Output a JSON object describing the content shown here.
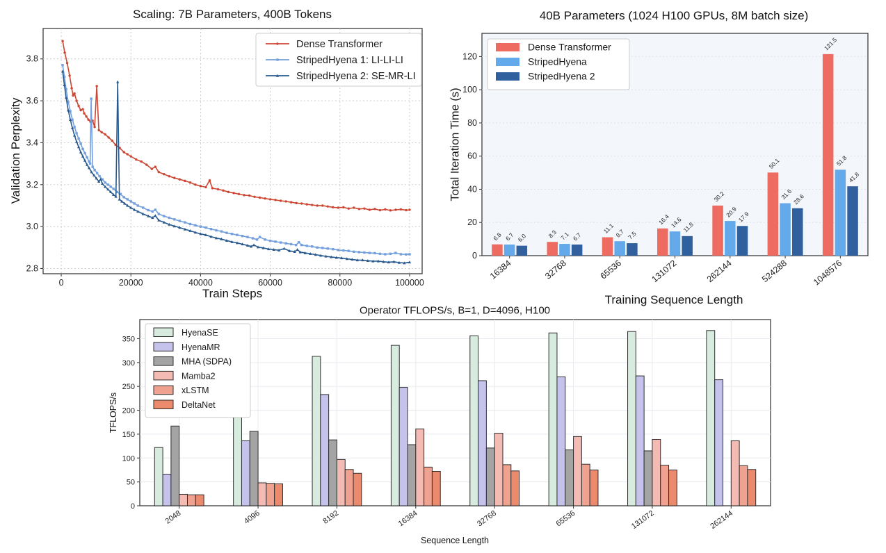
{
  "chart_data": [
    {
      "type": "line",
      "title": "Scaling: 7B Parameters, 400B Tokens",
      "xlabel": "Train Steps",
      "ylabel": "Validation Perplexity",
      "xlim": [
        -5200,
        103600
      ],
      "ylim": [
        2.775,
        3.945
      ],
      "xticks": [
        0,
        20000,
        40000,
        60000,
        80000,
        100000
      ],
      "yticks": [
        2.8,
        3.0,
        3.2,
        3.4,
        3.6,
        3.8
      ],
      "grid": "dashed",
      "legend_position": "upper right",
      "series": [
        {
          "name": "Dense Transformer",
          "color": "#cc4733",
          "marker": "circle",
          "x": [
            400,
            1000,
            1700,
            2400,
            3000,
            3400,
            3800,
            4400,
            5000,
            5600,
            6200,
            6600,
            7200,
            7800,
            8400,
            9000,
            9600,
            10200,
            10800,
            11600,
            12600,
            13600,
            14600,
            15600,
            16800,
            18000,
            19000,
            20000,
            21500,
            23000,
            24500,
            26000,
            27000,
            28000,
            29500,
            31000,
            32500,
            34000,
            35500,
            37000,
            38500,
            40000,
            41500,
            42600,
            43400,
            45000,
            46500,
            48000,
            49500,
            51000,
            52500,
            54000,
            55500,
            57000,
            58500,
            60000,
            61500,
            63000,
            64500,
            66000,
            67500,
            69000,
            70500,
            72000,
            73500,
            75000,
            76500,
            78000,
            79500,
            81000,
            82500,
            84000,
            85500,
            87000,
            88500,
            90000,
            91500,
            93000,
            94500,
            96000,
            97500,
            99000,
            100000
          ],
          "y": [
            3.885,
            3.83,
            3.78,
            3.72,
            3.66,
            3.625,
            3.635,
            3.6,
            3.575,
            3.555,
            3.56,
            3.54,
            3.525,
            3.51,
            3.5,
            3.505,
            3.475,
            3.67,
            3.46,
            3.45,
            3.44,
            3.425,
            3.41,
            3.39,
            3.375,
            3.355,
            3.345,
            3.335,
            3.32,
            3.31,
            3.295,
            3.275,
            3.285,
            3.26,
            3.25,
            3.24,
            3.232,
            3.225,
            3.218,
            3.21,
            3.2,
            3.193,
            3.188,
            3.22,
            3.183,
            3.178,
            3.172,
            3.165,
            3.16,
            3.155,
            3.15,
            3.148,
            3.142,
            3.138,
            3.134,
            3.13,
            3.127,
            3.123,
            3.12,
            3.116,
            3.112,
            3.11,
            3.106,
            3.103,
            3.1,
            3.1,
            3.096,
            3.092,
            3.09,
            3.092,
            3.086,
            3.09,
            3.084,
            3.086,
            3.08,
            3.084,
            3.078,
            3.082,
            3.077,
            3.08,
            3.082,
            3.078,
            3.08
          ]
        },
        {
          "name": "StripedHyena 1: LI-LI-LI",
          "color": "#739fdc",
          "marker": "square",
          "x": [
            400,
            900,
            1400,
            2000,
            2600,
            3200,
            3800,
            4400,
            5000,
            5600,
            6200,
            6800,
            7400,
            8000,
            8300,
            8600,
            9000,
            9600,
            10300,
            11000,
            11800,
            12600,
            13400,
            14200,
            15000,
            16000,
            17000,
            18000,
            19000,
            20000,
            21000,
            22000,
            23500,
            25000,
            26200,
            27000,
            28000,
            29500,
            31000,
            32500,
            34000,
            35500,
            37000,
            38500,
            40000,
            41500,
            43000,
            44500,
            46000,
            47500,
            49000,
            50500,
            52000,
            53500,
            55000,
            56200,
            57000,
            58500,
            60000,
            61500,
            63000,
            64500,
            66000,
            67400,
            68200,
            69000,
            70500,
            72000,
            73500,
            75000,
            76500,
            78000,
            79500,
            81000,
            82500,
            84000,
            85500,
            87000,
            88500,
            90000,
            91500,
            93000,
            94500,
            96000,
            97500,
            99000,
            100000
          ],
          "y": [
            3.77,
            3.715,
            3.655,
            3.595,
            3.55,
            3.51,
            3.475,
            3.445,
            3.42,
            3.395,
            3.37,
            3.35,
            3.33,
            3.31,
            3.3,
            3.61,
            3.285,
            3.27,
            3.255,
            3.24,
            3.225,
            3.21,
            3.2,
            3.19,
            3.18,
            3.165,
            3.155,
            3.14,
            3.13,
            3.12,
            3.11,
            3.1,
            3.09,
            3.078,
            3.072,
            3.08,
            3.06,
            3.05,
            3.042,
            3.034,
            3.027,
            3.02,
            3.012,
            3.006,
            3.0,
            2.995,
            2.988,
            2.982,
            2.977,
            2.97,
            2.965,
            2.96,
            2.955,
            2.95,
            2.944,
            2.938,
            2.95,
            2.938,
            2.932,
            2.928,
            2.924,
            2.92,
            2.916,
            2.912,
            2.925,
            2.912,
            2.908,
            2.905,
            2.9,
            2.898,
            2.895,
            2.892,
            2.888,
            2.886,
            2.884,
            2.88,
            2.878,
            2.876,
            2.874,
            2.873,
            2.87,
            2.868,
            2.87,
            2.874,
            2.868,
            2.867,
            2.868
          ]
        },
        {
          "name": "StripedHyena 2: SE-MR-LI",
          "color": "#28598e",
          "marker": "triangle",
          "x": [
            400,
            900,
            1400,
            2000,
            2600,
            3200,
            3800,
            4400,
            5000,
            5600,
            6200,
            6800,
            7400,
            8000,
            8700,
            9400,
            10100,
            10800,
            11300,
            11800,
            12600,
            13400,
            14200,
            15000,
            15700,
            16200,
            16700,
            17400,
            18200,
            19000,
            20000,
            21000,
            22000,
            23500,
            25000,
            26200,
            27000,
            28000,
            29500,
            31000,
            32500,
            34000,
            35500,
            37000,
            38500,
            40000,
            41500,
            43000,
            44500,
            46000,
            47500,
            49000,
            50500,
            52000,
            53500,
            54500,
            55300,
            56500,
            58000,
            59500,
            61000,
            62500,
            64000,
            65500,
            67000,
            67800,
            68600,
            70000,
            71500,
            73000,
            74500,
            76000,
            77500,
            79000,
            80500,
            82000,
            83500,
            85000,
            86500,
            88000,
            89500,
            91000,
            92500,
            94000,
            95500,
            97000,
            98500,
            100000
          ],
          "y": [
            3.74,
            3.675,
            3.615,
            3.555,
            3.51,
            3.47,
            3.435,
            3.405,
            3.38,
            3.355,
            3.335,
            3.315,
            3.295,
            3.28,
            3.26,
            3.245,
            3.23,
            3.215,
            3.225,
            3.205,
            3.19,
            3.178,
            3.165,
            3.152,
            3.143,
            3.69,
            3.13,
            3.12,
            3.11,
            3.1,
            3.09,
            3.08,
            3.072,
            3.06,
            3.05,
            3.042,
            3.052,
            3.03,
            3.02,
            3.01,
            3.002,
            2.995,
            2.987,
            2.98,
            2.972,
            2.965,
            2.96,
            2.952,
            2.945,
            2.94,
            2.933,
            2.927,
            2.922,
            2.916,
            2.91,
            2.905,
            2.912,
            2.902,
            2.898,
            2.893,
            2.89,
            2.887,
            2.895,
            2.884,
            2.88,
            2.89,
            2.878,
            2.874,
            2.87,
            2.866,
            2.862,
            2.858,
            2.855,
            2.852,
            2.85,
            2.846,
            2.843,
            2.84,
            2.84,
            2.837,
            2.835,
            2.835,
            2.832,
            2.83,
            2.832,
            2.828,
            2.826,
            2.83
          ]
        }
      ]
    },
    {
      "type": "bar",
      "title": "40B Parameters (1024 H100 GPUs, 8M batch size)",
      "xlabel": "Training Sequence Length",
      "ylabel": "Total Iteration Time (s)",
      "categories": [
        "16384",
        "32768",
        "65536",
        "131072",
        "262144",
        "524288",
        "1048576"
      ],
      "yticks": [
        0,
        20,
        40,
        60,
        80,
        100,
        120
      ],
      "ylim": [
        0,
        134
      ],
      "grid": "dashed-horizontal",
      "plot_background": "#f3f6fa",
      "bar_value_labels": true,
      "legend_position": "upper left",
      "series": [
        {
          "name": "Dense Transformer",
          "color": "#ee6b61",
          "values": [
            6.8,
            8.3,
            11.1,
            16.4,
            30.2,
            50.1,
            121.5
          ]
        },
        {
          "name": "StripedHyena",
          "color": "#64a9e9",
          "values": [
            6.7,
            7.1,
            8.7,
            14.6,
            20.9,
            31.6,
            51.8
          ]
        },
        {
          "name": "StripedHyena 2",
          "color": "#30609d",
          "values": [
            6.0,
            6.7,
            7.5,
            11.8,
            17.9,
            28.6,
            41.8
          ]
        }
      ]
    },
    {
      "type": "bar",
      "title": "Operator TFLOPS/s, B=1, D=4096, H100",
      "xlabel": "Sequence Length",
      "ylabel": "TFLOPS/s",
      "categories": [
        "2048",
        "4096",
        "8192",
        "16384",
        "32768",
        "65536",
        "131072",
        "262144"
      ],
      "yticks": [
        0,
        50,
        100,
        150,
        200,
        250,
        300,
        350
      ],
      "ylim": [
        0,
        390
      ],
      "grid": "solid-both",
      "plot_background": "#ffffff",
      "bar_value_labels": false,
      "legend_position": "upper left",
      "series": [
        {
          "name": "HyenaSE",
          "color": "#d8ebdf",
          "values": [
            122,
            243,
            313,
            336,
            356,
            362,
            365,
            367
          ]
        },
        {
          "name": "HyenaMR",
          "color": "#c5c2ec",
          "values": [
            66,
            136,
            233,
            248,
            262,
            270,
            272,
            264
          ]
        },
        {
          "name": "MHA (SDPA)",
          "color": "#a4a4a4",
          "values": [
            167,
            156,
            138,
            128,
            121,
            117,
            115,
            0
          ]
        },
        {
          "name": "Mamba2",
          "color": "#f3bbb3",
          "values": [
            24,
            48,
            97,
            161,
            152,
            145,
            139,
            136
          ]
        },
        {
          "name": "xLSTM",
          "color": "#efa28f",
          "values": [
            23,
            47,
            76,
            81,
            86,
            87,
            85,
            84
          ]
        },
        {
          "name": "DeltaNet",
          "color": "#eb8a6d",
          "values": [
            23,
            46,
            68,
            72,
            73,
            75,
            75,
            76
          ]
        }
      ]
    }
  ]
}
